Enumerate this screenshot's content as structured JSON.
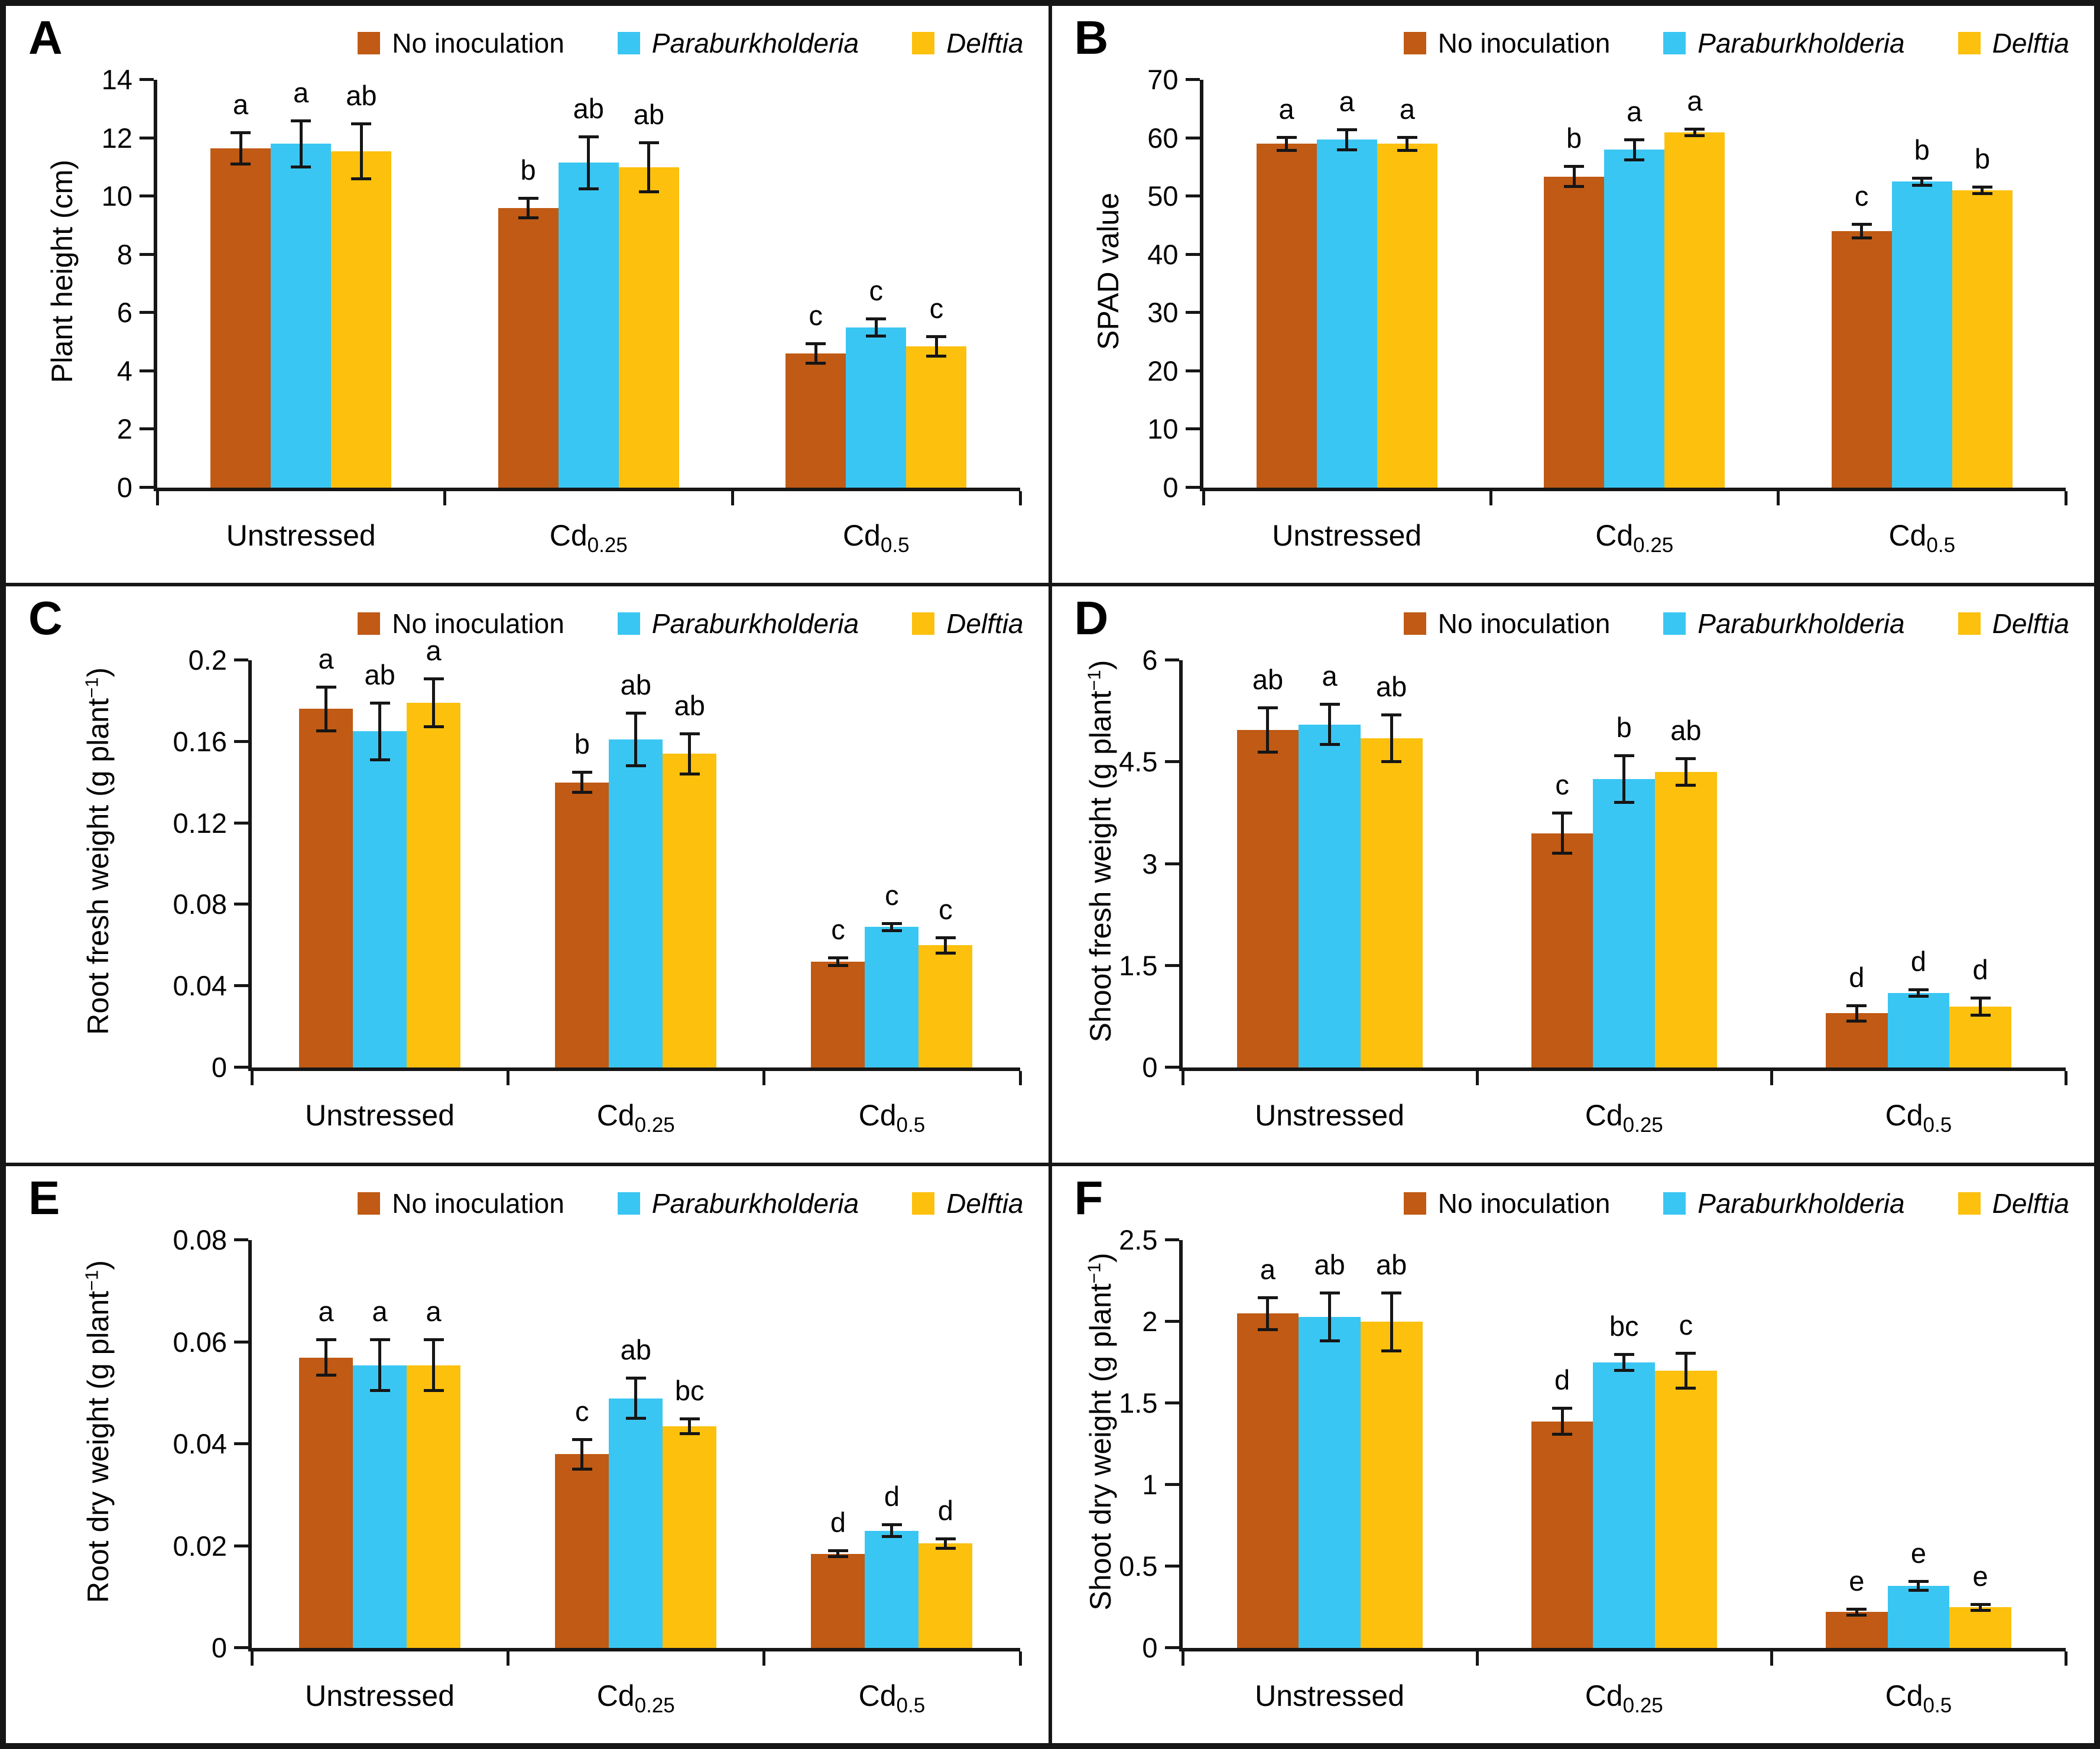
{
  "figure": {
    "legend": {
      "items": [
        {
          "label": "No inoculation",
          "color": "#c05a14",
          "italic": false
        },
        {
          "label": "Paraburkholderia",
          "color": "#3ac6f3",
          "italic": true
        },
        {
          "label": "Delftia",
          "color": "#fcc00d",
          "italic": true
        }
      ],
      "position": "top-right"
    },
    "colors": {
      "axis": "#161616",
      "error_bar": "#161616",
      "background": "#ffffff"
    }
  },
  "chart_data": [
    {
      "type": "bar",
      "panel_label": "A",
      "ylabel_pre": "Plant height (cm)",
      "ylabel_sup": "",
      "ylabel_post": "",
      "xlabel": "",
      "ylim": [
        0,
        14
      ],
      "yticks": [
        0,
        2,
        4,
        6,
        8,
        10,
        12,
        14
      ],
      "ytick_labels": [
        "0",
        "2",
        "4",
        "6",
        "8",
        "10",
        "12",
        "14"
      ],
      "grid": false,
      "legend_position": "top-right",
      "categories": [
        {
          "text": "Unstressed",
          "sub": ""
        },
        {
          "text": "Cd",
          "sub": "0.25"
        },
        {
          "text": "Cd",
          "sub": "0.5"
        }
      ],
      "series": [
        {
          "name": "No inoculation",
          "values": [
            11.65,
            9.6,
            4.6
          ],
          "errors": [
            0.55,
            0.35,
            0.35
          ],
          "letters": [
            "a",
            "b",
            "c"
          ]
        },
        {
          "name": "Paraburkholderia",
          "values": [
            11.8,
            11.15,
            5.5
          ],
          "errors": [
            0.8,
            0.9,
            0.3
          ],
          "letters": [
            "a",
            "ab",
            "c"
          ]
        },
        {
          "name": "Delftia",
          "values": [
            11.55,
            11.0,
            4.85
          ],
          "errors": [
            0.95,
            0.85,
            0.35
          ],
          "letters": [
            "ab",
            "ab",
            "c"
          ]
        }
      ]
    },
    {
      "type": "bar",
      "panel_label": "B",
      "ylabel_pre": "SPAD value",
      "ylabel_sup": "",
      "ylabel_post": "",
      "xlabel": "",
      "ylim": [
        0,
        70
      ],
      "yticks": [
        0,
        10,
        20,
        30,
        40,
        50,
        60,
        70
      ],
      "ytick_labels": [
        "0",
        "10",
        "20",
        "30",
        "40",
        "50",
        "60",
        "70"
      ],
      "grid": false,
      "legend_position": "top-right",
      "categories": [
        {
          "text": "Unstressed",
          "sub": ""
        },
        {
          "text": "Cd",
          "sub": "0.25"
        },
        {
          "text": "Cd",
          "sub": "0.5"
        }
      ],
      "series": [
        {
          "name": "No inoculation",
          "values": [
            59.0,
            53.4,
            44.0
          ],
          "errors": [
            1.2,
            1.8,
            1.2
          ],
          "letters": [
            "a",
            "b",
            "c"
          ]
        },
        {
          "name": "Paraburkholderia",
          "values": [
            59.7,
            58.0,
            52.5
          ],
          "errors": [
            1.8,
            1.8,
            0.7
          ],
          "letters": [
            "a",
            "a",
            "b"
          ]
        },
        {
          "name": "Delftia",
          "values": [
            59.0,
            61.0,
            51.0
          ],
          "errors": [
            1.2,
            0.6,
            0.6
          ],
          "letters": [
            "a",
            "a",
            "b"
          ]
        }
      ]
    },
    {
      "type": "bar",
      "panel_label": "C",
      "ylabel_pre": "Root fresh weight (g plant",
      "ylabel_sup": "−1",
      "ylabel_post": ")",
      "xlabel": "",
      "ylim": [
        0,
        0.2
      ],
      "yticks": [
        0,
        0.04,
        0.08,
        0.12,
        0.16,
        0.2
      ],
      "ytick_labels": [
        "0",
        "0.04",
        "0.08",
        "0.12",
        "0.16",
        "0.2"
      ],
      "grid": false,
      "legend_position": "top-right",
      "categories": [
        {
          "text": "Unstressed",
          "sub": ""
        },
        {
          "text": "Cd",
          "sub": "0.25"
        },
        {
          "text": "Cd",
          "sub": "0.5"
        }
      ],
      "series": [
        {
          "name": "No inoculation",
          "values": [
            0.176,
            0.14,
            0.052
          ],
          "errors": [
            0.011,
            0.005,
            0.002
          ],
          "letters": [
            "a",
            "b",
            "c"
          ]
        },
        {
          "name": "Paraburkholderia",
          "values": [
            0.165,
            0.161,
            0.069
          ],
          "errors": [
            0.014,
            0.013,
            0.002
          ],
          "letters": [
            "ab",
            "ab",
            "c"
          ]
        },
        {
          "name": "Delftia",
          "values": [
            0.179,
            0.154,
            0.06
          ],
          "errors": [
            0.012,
            0.01,
            0.004
          ],
          "letters": [
            "a",
            "ab",
            "c"
          ]
        }
      ]
    },
    {
      "type": "bar",
      "panel_label": "D",
      "ylabel_pre": "Shoot fresh weight (g plant",
      "ylabel_sup": "−1",
      "ylabel_post": ")",
      "xlabel": "",
      "ylim": [
        0,
        6
      ],
      "yticks": [
        0,
        1.5,
        3,
        4.5,
        6
      ],
      "ytick_labels": [
        "0",
        "1.5",
        "3",
        "4.5",
        "6"
      ],
      "grid": false,
      "legend_position": "top-right",
      "categories": [
        {
          "text": "Unstressed",
          "sub": ""
        },
        {
          "text": "Cd",
          "sub": "0.25"
        },
        {
          "text": "Cd",
          "sub": "0.5"
        }
      ],
      "series": [
        {
          "name": "No inoculation",
          "values": [
            4.97,
            3.45,
            0.8
          ],
          "errors": [
            0.33,
            0.3,
            0.12
          ],
          "letters": [
            "ab",
            "c",
            "d"
          ]
        },
        {
          "name": "Paraburkholderia",
          "values": [
            5.05,
            4.25,
            1.1
          ],
          "errors": [
            0.3,
            0.35,
            0.05
          ],
          "letters": [
            "a",
            "b",
            "d"
          ]
        },
        {
          "name": "Delftia",
          "values": [
            4.85,
            4.35,
            0.9
          ],
          "errors": [
            0.35,
            0.2,
            0.13
          ],
          "letters": [
            "ab",
            "ab",
            "d"
          ]
        }
      ]
    },
    {
      "type": "bar",
      "panel_label": "E",
      "ylabel_pre": "Root dry weight (g plant",
      "ylabel_sup": "−1",
      "ylabel_post": ")",
      "xlabel": "",
      "ylim": [
        0,
        0.08
      ],
      "yticks": [
        0,
        0.02,
        0.04,
        0.06,
        0.08
      ],
      "ytick_labels": [
        "0",
        "0.02",
        "0.04",
        "0.06",
        "0.08"
      ],
      "grid": false,
      "legend_position": "top-right",
      "categories": [
        {
          "text": "Unstressed",
          "sub": ""
        },
        {
          "text": "Cd",
          "sub": "0.25"
        },
        {
          "text": "Cd",
          "sub": "0.5"
        }
      ],
      "series": [
        {
          "name": "No inoculation",
          "values": [
            0.057,
            0.038,
            0.0185
          ],
          "errors": [
            0.0035,
            0.003,
            0.0006
          ],
          "letters": [
            "a",
            "c",
            "d"
          ]
        },
        {
          "name": "Paraburkholderia",
          "values": [
            0.0555,
            0.049,
            0.023
          ],
          "errors": [
            0.005,
            0.004,
            0.0012
          ],
          "letters": [
            "a",
            "ab",
            "d"
          ]
        },
        {
          "name": "Delftia",
          "values": [
            0.0555,
            0.0435,
            0.0205
          ],
          "errors": [
            0.005,
            0.0015,
            0.001
          ],
          "letters": [
            "a",
            "bc",
            "d"
          ]
        }
      ]
    },
    {
      "type": "bar",
      "panel_label": "F",
      "ylabel_pre": "Shoot dry weight (g plant",
      "ylabel_sup": "−1",
      "ylabel_post": ")",
      "xlabel": "",
      "ylim": [
        0,
        2.5
      ],
      "yticks": [
        0,
        0.5,
        1,
        1.5,
        2,
        2.5
      ],
      "ytick_labels": [
        "0",
        "0.5",
        "1",
        "1.5",
        "2",
        "2.5"
      ],
      "grid": false,
      "legend_position": "top-right",
      "categories": [
        {
          "text": "Unstressed",
          "sub": ""
        },
        {
          "text": "Cd",
          "sub": "0.25"
        },
        {
          "text": "Cd",
          "sub": "0.5"
        }
      ],
      "series": [
        {
          "name": "No inoculation",
          "values": [
            2.05,
            1.39,
            0.22
          ],
          "errors": [
            0.1,
            0.08,
            0.02
          ],
          "letters": [
            "a",
            "d",
            "e"
          ]
        },
        {
          "name": "Paraburkholderia",
          "values": [
            2.03,
            1.75,
            0.38
          ],
          "errors": [
            0.15,
            0.05,
            0.03
          ],
          "letters": [
            "ab",
            "bc",
            "e"
          ]
        },
        {
          "name": "Delftia",
          "values": [
            2.0,
            1.7,
            0.25
          ],
          "errors": [
            0.18,
            0.11,
            0.02
          ],
          "letters": [
            "ab",
            "c",
            "e"
          ]
        }
      ]
    }
  ]
}
